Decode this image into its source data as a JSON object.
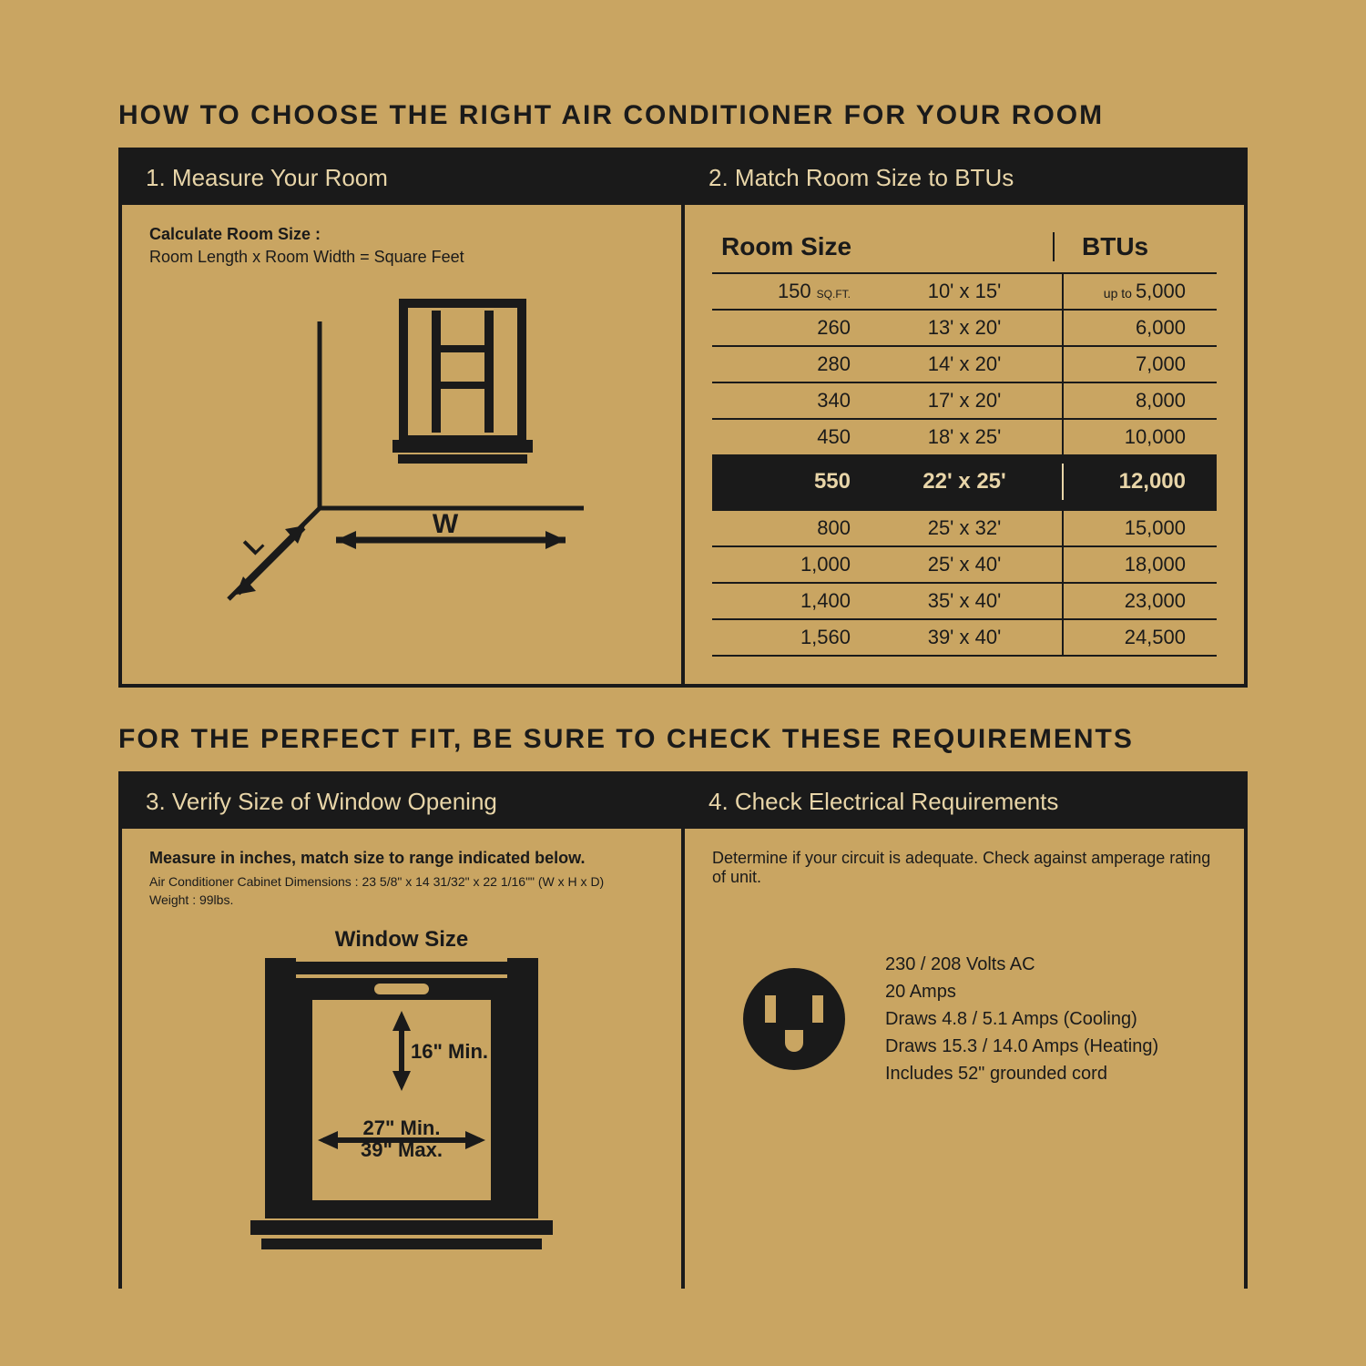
{
  "colors": {
    "bg": "#c9a562",
    "ink": "#1a1a1a",
    "light": "#e8d5a8"
  },
  "title1": "HOW TO CHOOSE THE RIGHT AIR CONDITIONER FOR YOUR ROOM",
  "title2": "FOR THE PERFECT FIT, BE SURE TO CHECK THESE REQUIREMENTS",
  "step1": {
    "header": "1. Measure Your Room",
    "calc_label": "Calculate Room Size :",
    "calc_formula": "Room Length x Room Width = Square Feet",
    "labels": {
      "W": "W",
      "L": "L"
    }
  },
  "step2": {
    "header": "2. Match Room Size to BTUs",
    "col_room": "Room Size",
    "col_btu": "BTUs",
    "sqft_unit": "SQ.FT.",
    "upto": "up to",
    "rows": [
      {
        "sqft": "150",
        "dims": "10' x 15'",
        "btu": "5,000",
        "first": true
      },
      {
        "sqft": "260",
        "dims": "13' x 20'",
        "btu": "6,000"
      },
      {
        "sqft": "280",
        "dims": "14' x 20'",
        "btu": "7,000"
      },
      {
        "sqft": "340",
        "dims": "17' x 20'",
        "btu": "8,000"
      },
      {
        "sqft": "450",
        "dims": "18' x 25'",
        "btu": "10,000"
      },
      {
        "sqft": "550",
        "dims": "22' x 25'",
        "btu": "12,000",
        "highlight": true
      },
      {
        "sqft": "800",
        "dims": "25' x 32'",
        "btu": "15,000"
      },
      {
        "sqft": "1,000",
        "dims": "25' x 40'",
        "btu": "18,000"
      },
      {
        "sqft": "1,400",
        "dims": "35' x 40'",
        "btu": "23,000"
      },
      {
        "sqft": "1,560",
        "dims": "39' x 40'",
        "btu": "24,500"
      }
    ]
  },
  "step3": {
    "header": "3. Verify Size of Window Opening",
    "instr": "Measure in inches, match size to range indicated below.",
    "dims_line": "Air Conditioner Cabinet Dimensions : 23 5/8\" x 14 31/32\" x 22 1/16\"\" (W x H x D)",
    "weight_line": "Weight : 99lbs.",
    "window_title": "Window Size",
    "h_min": "16\" Min.",
    "w_min": "27\" Min.",
    "w_max": "39\" Max."
  },
  "step4": {
    "header": "4. Check Electrical Requirements",
    "instr": "Determine if your circuit is adequate. Check against amperage rating of unit.",
    "specs": [
      "230 / 208 Volts AC",
      "20 Amps",
      "Draws 4.8 / 5.1 Amps (Cooling)",
      "Draws 15.3 / 14.0 Amps (Heating)",
      "Includes 52\" grounded cord"
    ]
  }
}
